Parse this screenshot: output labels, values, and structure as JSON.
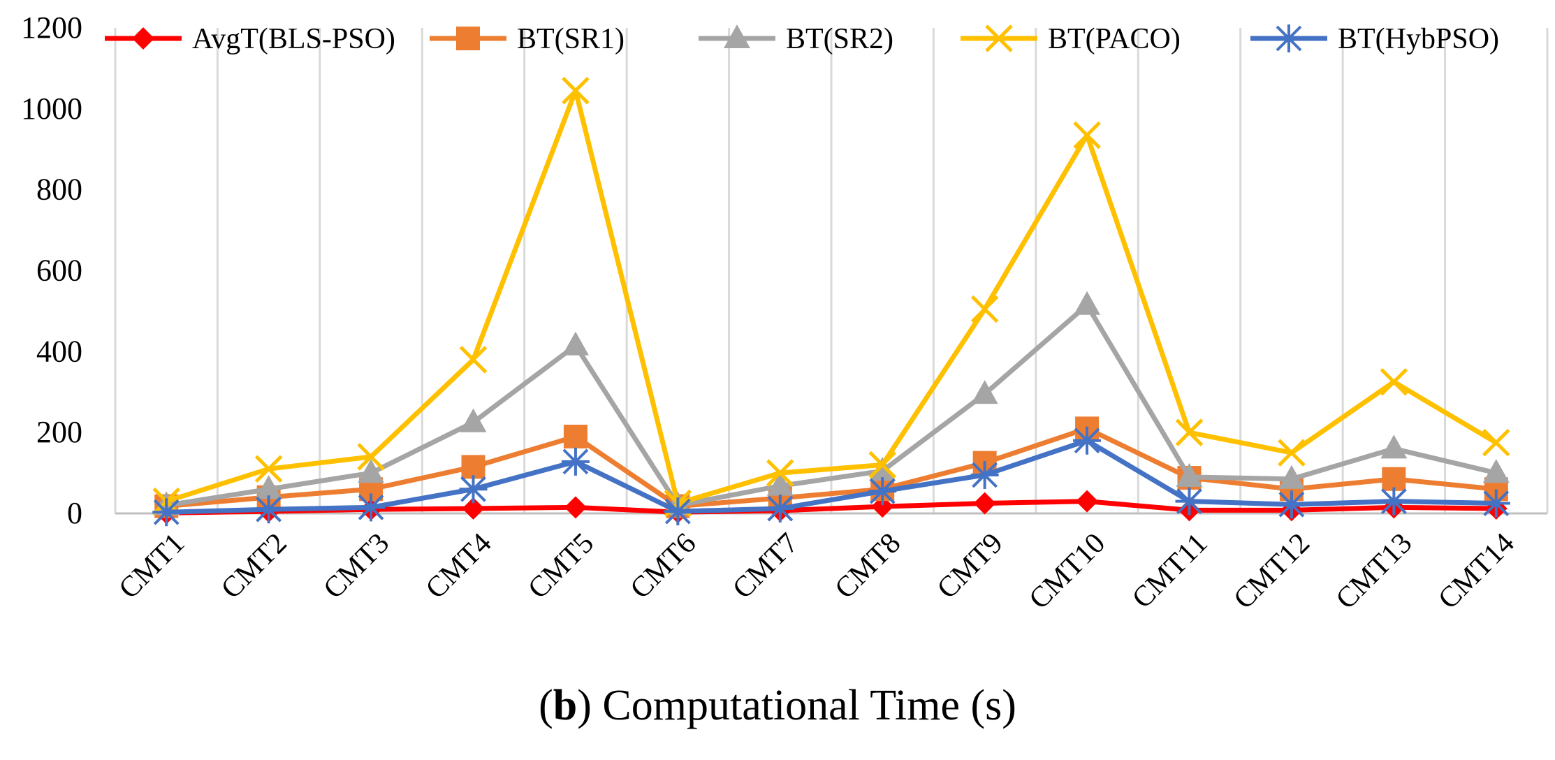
{
  "chart_data": {
    "type": "line",
    "title": "",
    "xlabel": "",
    "ylabel": "",
    "ylim": [
      0,
      1200
    ],
    "yticks": [
      0,
      200,
      400,
      600,
      800,
      1000,
      1200
    ],
    "grid": "vertical",
    "legend_position": "top",
    "categories": [
      "CMT1",
      "CMT2",
      "CMT3",
      "CMT4",
      "CMT5",
      "CMT6",
      "CMT7",
      "CMT8",
      "CMT9",
      "CMT10",
      "CMT11",
      "CMT12",
      "CMT13",
      "CMT14"
    ],
    "series": [
      {
        "name": "AvgT(BLS-PSO)",
        "color": "#ff0000",
        "marker": "diamond",
        "values": [
          1,
          5,
          10,
          12,
          15,
          3,
          7,
          17,
          25,
          30,
          8,
          8,
          15,
          12
        ]
      },
      {
        "name": "BT(SR1)",
        "color": "#ed7d31",
        "marker": "square",
        "values": [
          18,
          40,
          60,
          115,
          190,
          18,
          38,
          60,
          125,
          210,
          88,
          60,
          85,
          60
        ]
      },
      {
        "name": "BT(SR2)",
        "color": "#a5a5a5",
        "marker": "triangle",
        "values": [
          20,
          60,
          100,
          225,
          415,
          20,
          68,
          105,
          295,
          515,
          90,
          85,
          160,
          100
        ]
      },
      {
        "name": "BT(PACO)",
        "color": "#ffc000",
        "marker": "x",
        "values": [
          30,
          110,
          140,
          380,
          1045,
          25,
          100,
          120,
          505,
          935,
          200,
          150,
          325,
          175
        ]
      },
      {
        "name": "BT(HybPSO)",
        "color": "#4472c4",
        "marker": "star",
        "values": [
          3,
          10,
          15,
          60,
          128,
          5,
          12,
          55,
          95,
          180,
          30,
          22,
          30,
          25
        ]
      }
    ]
  },
  "caption": {
    "label": "b",
    "text": "Computational Time (s)"
  }
}
